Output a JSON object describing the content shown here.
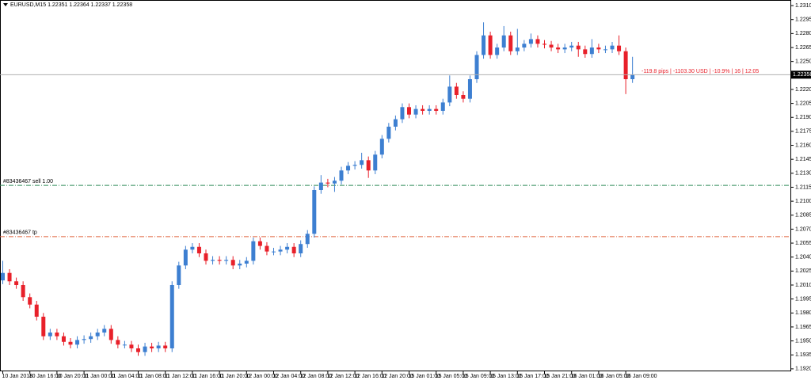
{
  "chart_data": {
    "type": "candlestick",
    "header": "EURUSD,M15  1.22351 1.22364 1.22337 1.22358",
    "up_color": "#3d7fd1",
    "down_color": "#e8202a",
    "grid": false,
    "categories": [
      "10 Jan 2018",
      null,
      null,
      null,
      "10 Jan 16:00",
      null,
      null,
      null,
      "10 Jan 20:00",
      null,
      null,
      null,
      "11 Jan 00:00",
      null,
      null,
      null,
      "11 Jan 04:00",
      null,
      null,
      null,
      "11 Jan 08:00",
      null,
      null,
      null,
      "11 Jan 12:00",
      null,
      null,
      null,
      "11 Jan 16:00",
      null,
      null,
      null,
      "11 Jan 20:00",
      null,
      null,
      null,
      "12 Jan 00:00",
      null,
      null,
      null,
      "12 Jan 04:00",
      null,
      null,
      null,
      "12 Jan 08:00",
      null,
      null,
      null,
      "12 Jan 12:00",
      null,
      null,
      null,
      "12 Jan 16:00",
      null,
      null,
      null,
      "12 Jan 20:00",
      null,
      null,
      null,
      "15 Jan 01:00",
      null,
      null,
      null,
      "15 Jan 05:00",
      null,
      null,
      null,
      "15 Jan 09:00",
      null,
      null,
      null,
      "15 Jan 13:00",
      null,
      null,
      null,
      "15 Jan 17:00",
      null,
      null,
      null,
      "15 Jan 21:00",
      null,
      null,
      null,
      "16 Jan 01:00",
      null,
      null,
      null,
      "16 Jan 05:00",
      null,
      null,
      null,
      "16 Jan 09:00",
      null
    ],
    "open": [
      1.2015,
      1.2023,
      1.2014,
      1.201,
      1.1997,
      1.1989,
      1.1976,
      1.1955,
      1.1959,
      1.1955,
      1.1949,
      1.1946,
      1.1951,
      1.1952,
      1.1955,
      1.1959,
      1.1963,
      1.1951,
      1.1946,
      1.1946,
      1.1942,
      1.1938,
      1.1944,
      1.1942,
      1.1945,
      1.1942,
      1.201,
      1.2031,
      1.2048,
      1.2051,
      1.2044,
      1.2036,
      1.2037,
      1.2036,
      1.2037,
      1.2031,
      1.2033,
      1.2036,
      1.2057,
      1.2052,
      1.2046,
      1.2046,
      1.2048,
      1.2051,
      1.2044,
      1.2054,
      1.2065,
      1.2112,
      1.212,
      1.2119,
      1.2122,
      1.2133,
      1.2138,
      1.2139,
      1.2144,
      1.2133,
      1.215,
      1.2167,
      1.218,
      1.2188,
      1.2201,
      1.2193,
      1.2199,
      1.2197,
      1.2199,
      1.2197,
      1.2206,
      1.2223,
      1.2214,
      1.221,
      1.2231,
      1.2257,
      1.2278,
      1.2257,
      1.2265,
      1.2278,
      1.2261,
      1.2265,
      1.2269,
      1.2274,
      1.2269,
      1.2268,
      1.2265,
      1.2263,
      1.2265,
      1.2267,
      1.2263,
      1.2258,
      1.2265,
      1.2263,
      1.2263,
      1.2267,
      1.2261,
      1.2231
    ],
    "high": [
      1.2036,
      1.2027,
      1.2018,
      1.2014,
      1.2001,
      1.1993,
      1.198,
      1.1963,
      1.1963,
      1.1959,
      1.1953,
      1.1955,
      1.1956,
      1.1959,
      1.1963,
      1.1967,
      1.1967,
      1.1955,
      1.195,
      1.195,
      1.1946,
      1.1948,
      1.1948,
      1.1949,
      1.1949,
      1.2014,
      1.2035,
      1.2052,
      1.2055,
      1.2055,
      1.2048,
      1.2041,
      1.2041,
      1.2041,
      1.2041,
      1.2037,
      1.204,
      1.2061,
      1.2061,
      1.2056,
      1.205,
      1.2052,
      1.2055,
      1.2055,
      1.2058,
      1.2069,
      1.2116,
      1.2128,
      1.2124,
      1.2126,
      1.2137,
      1.2142,
      1.2143,
      1.2152,
      1.2148,
      1.2154,
      1.2171,
      1.2184,
      1.2192,
      1.2205,
      1.2205,
      1.2203,
      1.2203,
      1.2203,
      1.2203,
      1.221,
      1.2235,
      1.2227,
      1.2218,
      1.2235,
      1.2261,
      1.2292,
      1.2282,
      1.2269,
      1.2288,
      1.2282,
      1.2285,
      1.2273,
      1.228,
      1.2278,
      1.2273,
      1.2272,
      1.2269,
      1.2269,
      1.2271,
      1.2271,
      1.2267,
      1.2274,
      1.2269,
      1.2267,
      1.2271,
      1.2278,
      1.2265,
      1.2255
    ],
    "low": [
      1.2011,
      1.201,
      1.2006,
      1.1993,
      1.1985,
      1.1972,
      1.1951,
      1.1951,
      1.1951,
      1.1945,
      1.1942,
      1.1942,
      1.1947,
      1.1948,
      1.1951,
      1.1955,
      1.1947,
      1.1942,
      1.1942,
      1.1938,
      1.1934,
      1.1934,
      1.1938,
      1.1938,
      1.1938,
      1.1938,
      1.2006,
      1.2027,
      1.2044,
      1.204,
      1.2032,
      1.2032,
      1.2032,
      1.2032,
      1.2027,
      1.2027,
      1.2029,
      1.2032,
      1.2048,
      1.2042,
      1.2042,
      1.2042,
      1.2044,
      1.204,
      1.204,
      1.205,
      1.2061,
      1.2108,
      1.2115,
      1.211,
      1.2118,
      1.2129,
      1.2134,
      1.2135,
      1.2125,
      1.2129,
      1.2146,
      1.2163,
      1.2176,
      1.2184,
      1.2189,
      1.2189,
      1.2193,
      1.2193,
      1.2193,
      1.2193,
      1.2202,
      1.221,
      1.2206,
      1.2206,
      1.2227,
      1.2253,
      1.2253,
      1.2253,
      1.2261,
      1.2257,
      1.2257,
      1.2261,
      1.2265,
      1.2265,
      1.2264,
      1.2261,
      1.2259,
      1.2259,
      1.2261,
      1.2255,
      1.2254,
      1.2254,
      1.2259,
      1.2259,
      1.2259,
      1.2257,
      1.2215,
      1.2227
    ],
    "close": [
      1.2023,
      1.2014,
      1.201,
      1.1997,
      1.1989,
      1.1976,
      1.1955,
      1.1959,
      1.1955,
      1.1949,
      1.1946,
      1.1951,
      1.1952,
      1.1955,
      1.1959,
      1.1963,
      1.1951,
      1.1946,
      1.1946,
      1.1942,
      1.1938,
      1.1944,
      1.1942,
      1.1945,
      1.1942,
      1.201,
      1.2031,
      1.2048,
      1.2051,
      1.2044,
      1.2036,
      1.2037,
      1.2036,
      1.2037,
      1.2031,
      1.2033,
      1.2036,
      1.2057,
      1.2052,
      1.2046,
      1.2046,
      1.2048,
      1.2051,
      1.2044,
      1.2054,
      1.2065,
      1.2112,
      1.212,
      1.2119,
      1.2122,
      1.2133,
      1.2138,
      1.2139,
      1.2144,
      1.2133,
      1.215,
      1.2167,
      1.218,
      1.2188,
      1.2201,
      1.2193,
      1.2199,
      1.2197,
      1.2199,
      1.2197,
      1.2206,
      1.2223,
      1.2214,
      1.221,
      1.2231,
      1.2257,
      1.2278,
      1.2257,
      1.2265,
      1.2278,
      1.2261,
      1.2265,
      1.2269,
      1.2274,
      1.2269,
      1.2268,
      1.2265,
      1.2263,
      1.2265,
      1.2267,
      1.2263,
      1.2258,
      1.2265,
      1.2263,
      1.2263,
      1.2267,
      1.2261,
      1.2231,
      1.2236
    ],
    "ylim": [
      1.19182,
      1.2316
    ],
    "yticks": [
      {
        "value": 1.231,
        "label": "1.23100"
      },
      {
        "value": 1.2295,
        "label": "1.22950"
      },
      {
        "value": 1.228,
        "label": "1.22800"
      },
      {
        "value": 1.2265,
        "label": "1.22650"
      },
      {
        "value": 1.225,
        "label": "1.22500"
      },
      {
        "value": 1.2235,
        "label": "1.22350"
      },
      {
        "value": 1.222,
        "label": "1.22200"
      },
      {
        "value": 1.2205,
        "label": "1.22050"
      },
      {
        "value": 1.219,
        "label": "1.21900"
      },
      {
        "value": 1.2175,
        "label": "1.21750"
      },
      {
        "value": 1.216,
        "label": "1.21600"
      },
      {
        "value": 1.2145,
        "label": "1.21450"
      },
      {
        "value": 1.213,
        "label": "1.21300"
      },
      {
        "value": 1.2115,
        "label": "1.21150"
      },
      {
        "value": 1.21,
        "label": "1.21000"
      },
      {
        "value": 1.2085,
        "label": "1.20850"
      },
      {
        "value": 1.207,
        "label": "1.20700"
      },
      {
        "value": 1.2055,
        "label": "1.20550"
      },
      {
        "value": 1.204,
        "label": "1.20400"
      },
      {
        "value": 1.2025,
        "label": "1.20250"
      },
      {
        "value": 1.201,
        "label": "1.20100"
      },
      {
        "value": 1.1995,
        "label": "1.19950"
      },
      {
        "value": 1.198,
        "label": "1.19800"
      },
      {
        "value": 1.1965,
        "label": "1.19650"
      },
      {
        "value": 1.195,
        "label": "1.19500"
      },
      {
        "value": 1.1935,
        "label": "1.19350"
      },
      {
        "value": 1.192,
        "label": "1.19200"
      }
    ],
    "current_price": {
      "value": 1.22358,
      "label": "1.22358",
      "annotation": "-119.8 pips | -1103.30 USD | -10.9% | 16 | 12:05"
    },
    "levels": [
      {
        "value": 1.2117,
        "label": "#83436467 sell 1.00",
        "color": "#2e8b57"
      },
      {
        "value": 1.2062,
        "label": "#83436467 tp",
        "color": "#e0623a"
      }
    ]
  }
}
